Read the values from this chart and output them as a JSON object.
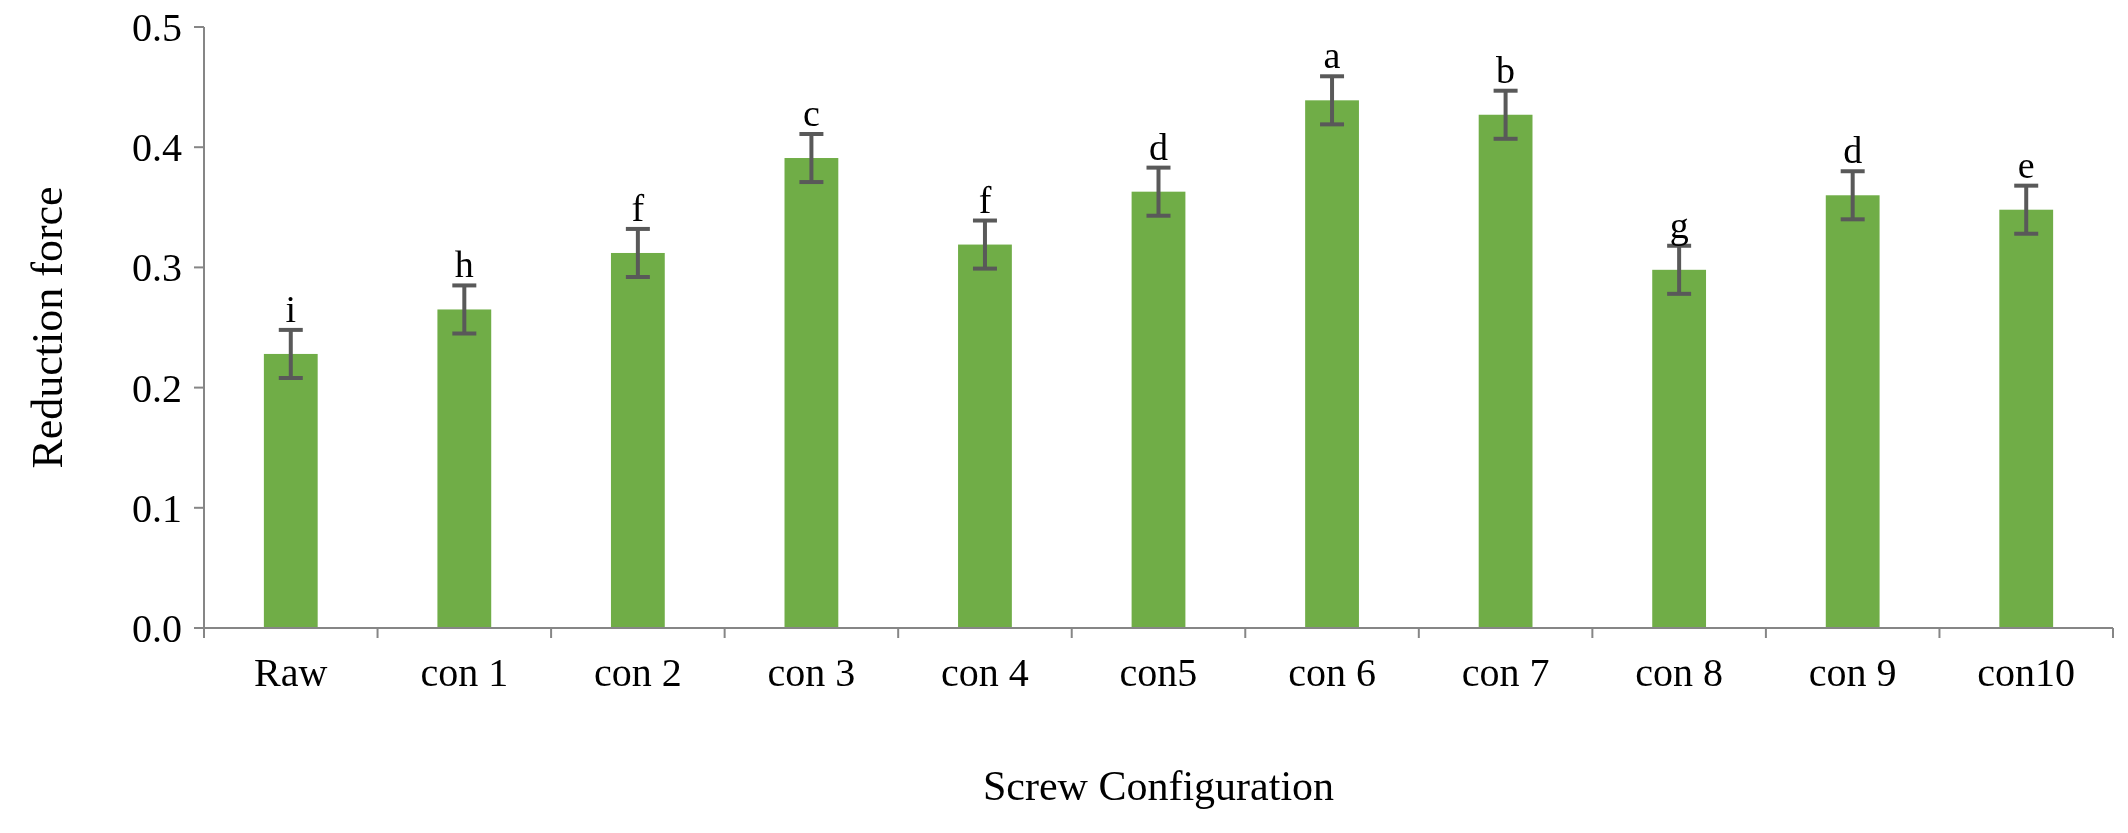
{
  "chart_data": {
    "type": "bar",
    "xlabel": "Screw Configuration",
    "ylabel": "Reduction force",
    "categories": [
      "Raw",
      "con 1",
      "con 2",
      "con 3",
      "con 4",
      "con5",
      "con 6",
      "con 7",
      "con 8",
      "con 9",
      "con10"
    ],
    "values": [
      0.228,
      0.265,
      0.312,
      0.391,
      0.319,
      0.363,
      0.439,
      0.427,
      0.298,
      0.36,
      0.348
    ],
    "errors": [
      0.02,
      0.02,
      0.02,
      0.02,
      0.02,
      0.02,
      0.02,
      0.02,
      0.02,
      0.02,
      0.02
    ],
    "color": "#70ad47",
    "ylim": [
      0,
      0.5
    ],
    "yticks": [
      {
        "value": 0,
        "label": "0.0"
      },
      0.1,
      0.2,
      0.3,
      0.4,
      0.5
    ],
    "grid": false,
    "annotations": [
      {
        "text": "i",
        "x": "Raw",
        "y": 0.228
      },
      {
        "text": "h",
        "x": "con 1",
        "y": 0.265
      },
      {
        "text": "f",
        "x": "con 2",
        "y": 0.312
      },
      {
        "text": "c",
        "x": "con 3",
        "y": 0.391
      },
      {
        "text": "f",
        "x": "con 4",
        "y": 0.319
      },
      {
        "text": "d",
        "x": "con5",
        "y": 0.363
      },
      {
        "text": "a",
        "x": "con 6",
        "y": 0.439
      },
      {
        "text": "b",
        "x": "con 7",
        "y": 0.427
      },
      {
        "text": "g",
        "x": "con 8",
        "y": 0.298
      },
      {
        "text": "d",
        "x": "con 9",
        "y": 0.36
      },
      {
        "text": "e",
        "x": "con10",
        "y": 0.348
      }
    ]
  }
}
